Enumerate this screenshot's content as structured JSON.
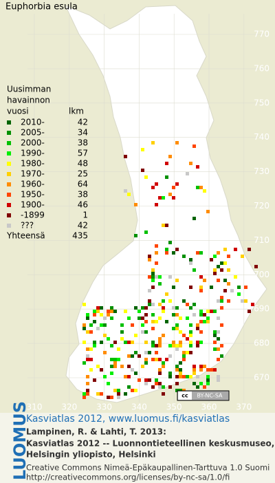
{
  "header": {
    "title": "Euphorbia esula"
  },
  "map": {
    "easting_ticks": [
      310,
      320,
      330,
      340,
      350,
      360,
      370
    ],
    "northing_ticks": [
      670,
      680,
      690,
      700,
      710,
      720,
      730,
      740,
      750,
      760,
      770
    ]
  },
  "legend": {
    "heading": [
      "Uusimman",
      "havainnon",
      "vuosi"
    ],
    "count_heading": "lkm",
    "rows": [
      {
        "label": "2010-",
        "count": "42",
        "color": "#006400"
      },
      {
        "label": "2005-",
        "count": "34",
        "color": "#009000"
      },
      {
        "label": "2000-",
        "count": "38",
        "color": "#00c000"
      },
      {
        "label": "1990-",
        "count": "57",
        "color": "#00ee00"
      },
      {
        "label": "1980-",
        "count": "48",
        "color": "#ffff00"
      },
      {
        "label": "1970-",
        "count": "25",
        "color": "#ffd000"
      },
      {
        "label": "1960-",
        "count": "64",
        "color": "#ff8c00"
      },
      {
        "label": "1950-",
        "count": "38",
        "color": "#ff4500"
      },
      {
        "label": "1900-",
        "count": "46",
        "color": "#d00000"
      },
      {
        "label": "-1899",
        "count": "1",
        "color": "#800000"
      },
      {
        "label": "???",
        "count": "42",
        "color": "#c8c8c8"
      }
    ],
    "total_label": "Yhteensä",
    "total": "435"
  },
  "badge": {
    "cc": "cc",
    "text": "BY-NC-SA"
  },
  "footer": {
    "brand": "LUOMUS",
    "link": "Kasviatlas 2012, www.luomus.fi/kasviatlas",
    "citation": [
      "Lampinen, R. & Lahti, T. 2013:",
      "Kasviatlas 2012 -- Luonnontieteellinen keskusmuseo,",
      "Helsingin yliopisto, Helsinki"
    ],
    "license": [
      "Creative Commons Nimeä-Epäkaupallinen-Tarttuva 1.0 Suomi",
      "http://creativecommons.org/licenses/by-nc-sa/1.0/fi"
    ]
  }
}
